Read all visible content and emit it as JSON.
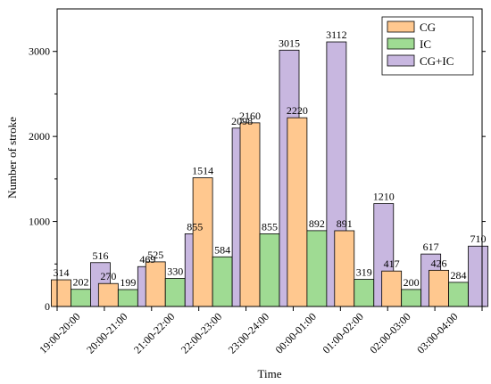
{
  "chart_data": {
    "type": "bar",
    "xlabel": "Time",
    "ylabel": "Number of stroke",
    "ylim": [
      0,
      3500
    ],
    "yticks": [
      0,
      1000,
      2000,
      3000
    ],
    "grid": false,
    "legend_position": "top-right",
    "categories": [
      "19:00-20:00",
      "20:00-21:00",
      "21:00-22:00",
      "22:00-23:00",
      "23:00-24:00",
      "00:00-01:00",
      "01:00-02:00",
      "02:00-03:00",
      "03:00-04:00"
    ],
    "series": [
      {
        "name": "CG",
        "color": "#FFC88F",
        "values": [
          314,
          270,
          525,
          1514,
          2160,
          2220,
          891,
          417,
          426
        ]
      },
      {
        "name": "IC",
        "color": "#9FDB93",
        "values": [
          202,
          199,
          330,
          584,
          855,
          892,
          319,
          200,
          284
        ]
      },
      {
        "name": "CG+IC",
        "color": "#C8B7E0",
        "values": [
          516,
          469,
          855,
          2098,
          3015,
          3112,
          1210,
          617,
          710
        ]
      }
    ]
  }
}
